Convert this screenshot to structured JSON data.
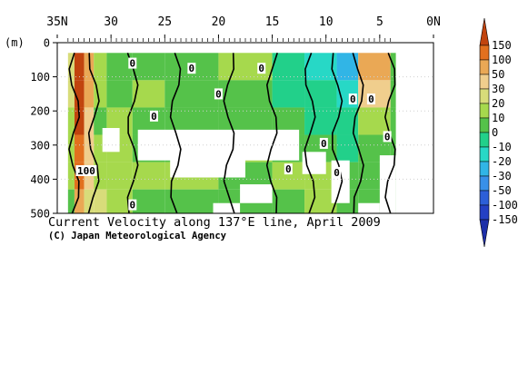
{
  "chart_data": {
    "type": "heatmap",
    "title": "Current Velocity along 137°E line, April 2009",
    "credit": "(C) Japan Meteorological Agency",
    "ylabel": "(m)",
    "x_ticks": [
      {
        "value": 35,
        "label": "35N"
      },
      {
        "value": 30,
        "label": "30"
      },
      {
        "value": 25,
        "label": "25"
      },
      {
        "value": 20,
        "label": "20"
      },
      {
        "value": 15,
        "label": "15"
      },
      {
        "value": 10,
        "label": "10"
      },
      {
        "value": 5,
        "label": "5"
      },
      {
        "value": 0,
        "label": "0N"
      }
    ],
    "y_ticks": [
      0,
      100,
      200,
      300,
      400,
      500
    ],
    "xlim": [
      35,
      0
    ],
    "ylim": [
      0,
      500
    ],
    "data_extent": {
      "lat_north": 34.0,
      "lat_south": 3.5,
      "depth_top": 30,
      "depth_bottom": 500
    },
    "colorbar": {
      "levels": [
        "150",
        "100",
        "50",
        "30",
        "20",
        "10",
        "0",
        "-10",
        "-20",
        "-30",
        "-50",
        "-100",
        "-150"
      ],
      "colors": [
        "#c1440e",
        "#e2701e",
        "#eaa855",
        "#f0ce8d",
        "#d8dc7a",
        "#a6d94d",
        "#55c24a",
        "#22d08a",
        "#27d8c6",
        "#31b5e6",
        "#3890e8",
        "#2d5fd8",
        "#2440c4",
        "#1d2fa8"
      ]
    },
    "contour_labels": [
      {
        "lat": 28.0,
        "depth": 60,
        "value": "0"
      },
      {
        "lat": 22.5,
        "depth": 75,
        "value": "0"
      },
      {
        "lat": 16.0,
        "depth": 75,
        "value": "0"
      },
      {
        "lat": 20.0,
        "depth": 150,
        "value": "0"
      },
      {
        "lat": 26.0,
        "depth": 215,
        "value": "0"
      },
      {
        "lat": 7.5,
        "depth": 165,
        "value": "0"
      },
      {
        "lat": 5.8,
        "depth": 165,
        "value": "0"
      },
      {
        "lat": 4.3,
        "depth": 275,
        "value": "0"
      },
      {
        "lat": 10.2,
        "depth": 295,
        "value": "0"
      },
      {
        "lat": 13.5,
        "depth": 370,
        "value": "0"
      },
      {
        "lat": 9.0,
        "depth": 380,
        "value": "0"
      },
      {
        "lat": 28.0,
        "depth": 475,
        "value": "0"
      },
      {
        "lat": 32.3,
        "depth": 375,
        "value": "100"
      }
    ],
    "sections": [
      {
        "lat_from": 34.0,
        "lat_to": 33.4,
        "values": [
          20,
          20,
          15,
          10,
          10,
          5
        ]
      },
      {
        "lat_from": 33.4,
        "lat_to": 32.5,
        "values": [
          150,
          150,
          150,
          120,
          100,
          60
        ]
      },
      {
        "lat_from": 32.5,
        "lat_to": 31.6,
        "values": [
          50,
          50,
          40,
          35,
          30,
          25
        ]
      },
      {
        "lat_from": 31.6,
        "lat_to": 30.4,
        "values": [
          10,
          10,
          5,
          10,
          15,
          20
        ]
      },
      {
        "lat_from": 30.4,
        "lat_to": 28.0,
        "values": [
          5,
          5,
          10,
          10,
          15,
          10
        ]
      },
      {
        "lat_from": 28.0,
        "lat_to": 25.0,
        "values": [
          5,
          10,
          5,
          5,
          10,
          5
        ]
      },
      {
        "lat_from": 25.0,
        "lat_to": 20.0,
        "values": [
          5,
          5,
          5,
          5,
          10,
          5
        ]
      },
      {
        "lat_from": 20.0,
        "lat_to": 15.0,
        "values": [
          10,
          5,
          5,
          10,
          5,
          5
        ]
      },
      {
        "lat_from": 15.0,
        "lat_to": 12.0,
        "values": [
          -10,
          -5,
          5,
          5,
          10,
          5
        ]
      },
      {
        "lat_from": 12.0,
        "lat_to": 9.0,
        "values": [
          -20,
          -10,
          -5,
          5,
          10,
          10
        ]
      },
      {
        "lat_from": 9.0,
        "lat_to": 7.0,
        "values": [
          -30,
          -20,
          -10,
          -5,
          5,
          5
        ]
      },
      {
        "lat_from": 7.0,
        "lat_to": 4.0,
        "values": [
          70,
          40,
          10,
          5,
          5,
          5
        ]
      },
      {
        "lat_from": 4.0,
        "lat_to": 3.5,
        "values": [
          5,
          5,
          5,
          5,
          5,
          5
        ]
      }
    ],
    "gaps": [
      {
        "lat_from": 27.5,
        "lat_to": 12.5,
        "depth_from": 255,
        "depth_to": 345
      },
      {
        "lat_from": 24.5,
        "lat_to": 17.5,
        "depth_from": 330,
        "depth_to": 395
      },
      {
        "lat_from": 30.8,
        "lat_to": 29.2,
        "depth_from": 250,
        "depth_to": 320
      },
      {
        "lat_from": 12.2,
        "lat_to": 10.0,
        "depth_from": 320,
        "depth_to": 385
      },
      {
        "lat_from": 9.5,
        "lat_to": 7.8,
        "depth_from": 345,
        "depth_to": 470
      },
      {
        "lat_from": 18.0,
        "lat_to": 15.0,
        "depth_from": 415,
        "depth_to": 470
      },
      {
        "lat_from": 7.0,
        "lat_to": 5.0,
        "depth_from": 470,
        "depth_to": 500
      },
      {
        "lat_from": 20.5,
        "lat_to": 18.0,
        "depth_from": 470,
        "depth_to": 500
      },
      {
        "lat_from": 5.0,
        "lat_to": 3.5,
        "depth_from": 330,
        "depth_to": 500
      }
    ]
  }
}
